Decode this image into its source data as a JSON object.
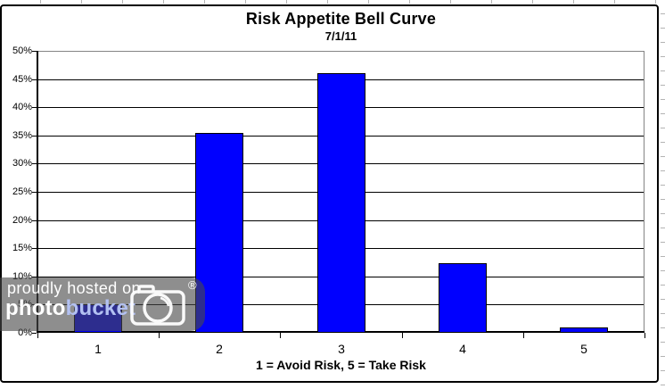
{
  "page": {
    "background": "#ffffff"
  },
  "chart_data": {
    "type": "bar",
    "title": "Risk Appetite Bell Curve",
    "subtitle": "7/1/11",
    "xlabel": "1 = Avoid Risk, 5 = Take Risk",
    "ylabel": "",
    "categories": [
      "1",
      "2",
      "3",
      "4",
      "5"
    ],
    "values": [
      5,
      35.5,
      46,
      12.3,
      1
    ],
    "unit": "%",
    "ylim": [
      0,
      50
    ],
    "ytick_step": 5,
    "ytick_labels": [
      "0%",
      "5%",
      "10%",
      "15%",
      "20%",
      "25%",
      "30%",
      "35%",
      "40%",
      "45%",
      "50%"
    ],
    "grid": true,
    "legend": false,
    "bar_color": "#0000ff",
    "bar_border_color": "#000000",
    "gridline_color": "#000000",
    "plot_border_color": "#848484",
    "axis_color": "#000000"
  },
  "watermark": {
    "line1": "proudly hosted on",
    "brand_part1": "photo",
    "brand_part2": "bucket",
    "registered_mark": "®",
    "text_color": "#ffffff",
    "brand_part2_color": "#b3c1f2",
    "camera_icon": "camera-icon"
  }
}
